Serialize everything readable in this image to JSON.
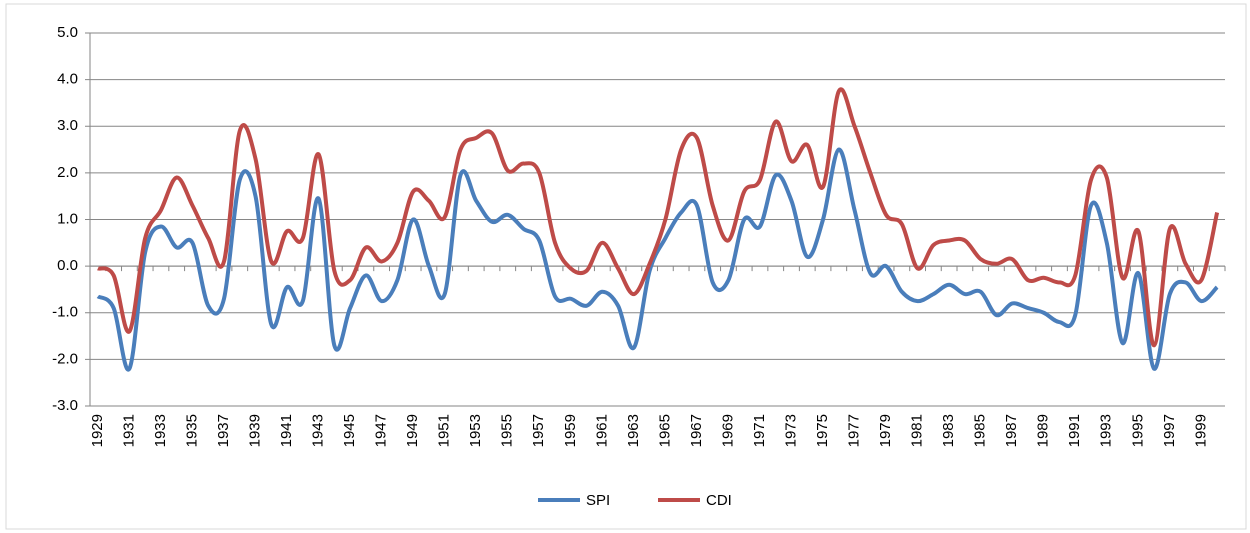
{
  "chart_data": {
    "type": "line",
    "categories": [
      "1929",
      null,
      "1931",
      null,
      "1933",
      null,
      "1935",
      null,
      "1937",
      null,
      "1939",
      null,
      "1941",
      null,
      "1943",
      null,
      "1945",
      null,
      "1947",
      null,
      "1949",
      null,
      "1951",
      null,
      "1953",
      null,
      "1955",
      null,
      "1957",
      null,
      "1959",
      null,
      "1961",
      null,
      "1963",
      null,
      "1965",
      null,
      "1967",
      null,
      "1969",
      null,
      "1971",
      null,
      "1973",
      null,
      "1975",
      null,
      "1977",
      null,
      "1979",
      null,
      "1981",
      null,
      "1983",
      null,
      "1985",
      null,
      "1987",
      null,
      "1989",
      null,
      "1991",
      null,
      "1993",
      null,
      "1995",
      null,
      "1997",
      null,
      "1999",
      null
    ],
    "series": [
      {
        "name": "SPI",
        "color": "#4a7ebb",
        "values": [
          -0.65,
          -0.9,
          -2.2,
          0.3,
          0.85,
          0.4,
          0.5,
          -0.85,
          -0.7,
          1.85,
          1.5,
          -1.25,
          -0.45,
          -0.75,
          1.45,
          -1.7,
          -0.9,
          -0.2,
          -0.75,
          -0.3,
          1.0,
          0.0,
          -0.6,
          1.95,
          1.4,
          0.95,
          1.1,
          0.8,
          0.55,
          -0.65,
          -0.7,
          -0.85,
          -0.55,
          -0.85,
          -1.75,
          -0.1,
          0.6,
          1.15,
          1.3,
          -0.35,
          -0.3,
          1.0,
          0.85,
          1.95,
          1.4,
          0.2,
          1.0,
          2.5,
          1.2,
          -0.15,
          0.0,
          -0.55,
          -0.75,
          -0.6,
          -0.4,
          -0.6,
          -0.55,
          -1.05,
          -0.8,
          -0.9,
          -1.0,
          -1.2,
          -1.05,
          1.3,
          0.5,
          -1.65,
          -0.15,
          -2.2,
          -0.6,
          -0.35,
          -0.75,
          -0.45
        ]
      },
      {
        "name": "CDI",
        "color": "#be4b48",
        "values": [
          -0.05,
          -0.2,
          -1.4,
          0.6,
          1.2,
          1.9,
          1.3,
          0.6,
          0.1,
          2.9,
          2.3,
          0.1,
          0.75,
          0.6,
          2.4,
          -0.1,
          -0.3,
          0.4,
          0.1,
          0.5,
          1.6,
          1.4,
          1.05,
          2.5,
          2.75,
          2.85,
          2.05,
          2.2,
          2.0,
          0.5,
          -0.05,
          -0.1,
          0.5,
          -0.05,
          -0.6,
          0.05,
          1.0,
          2.5,
          2.75,
          1.3,
          0.55,
          1.6,
          1.85,
          3.1,
          2.25,
          2.6,
          1.7,
          3.75,
          3.0,
          2.0,
          1.1,
          0.9,
          -0.05,
          0.45,
          0.55,
          0.55,
          0.15,
          0.05,
          0.15,
          -0.3,
          -0.25,
          -0.35,
          -0.2,
          1.85,
          1.9,
          -0.25,
          0.75,
          -1.7,
          0.8,
          0.05,
          -0.3,
          1.15
        ]
      }
    ],
    "ylim": [
      -3,
      5
    ],
    "yticks": [
      {
        "value": -3,
        "label": "-3.0"
      },
      {
        "value": -2,
        "label": "-2.0"
      },
      {
        "value": -1,
        "label": "-1.0"
      },
      {
        "value": 0,
        "label": "0.0"
      },
      {
        "value": 1,
        "label": "1.0"
      },
      {
        "value": 2,
        "label": "2.0"
      },
      {
        "value": 3,
        "label": "3.0"
      },
      {
        "value": 4,
        "label": "4.0"
      },
      {
        "value": 5,
        "label": "5.0"
      }
    ],
    "grid": true,
    "legend": "bottom"
  }
}
